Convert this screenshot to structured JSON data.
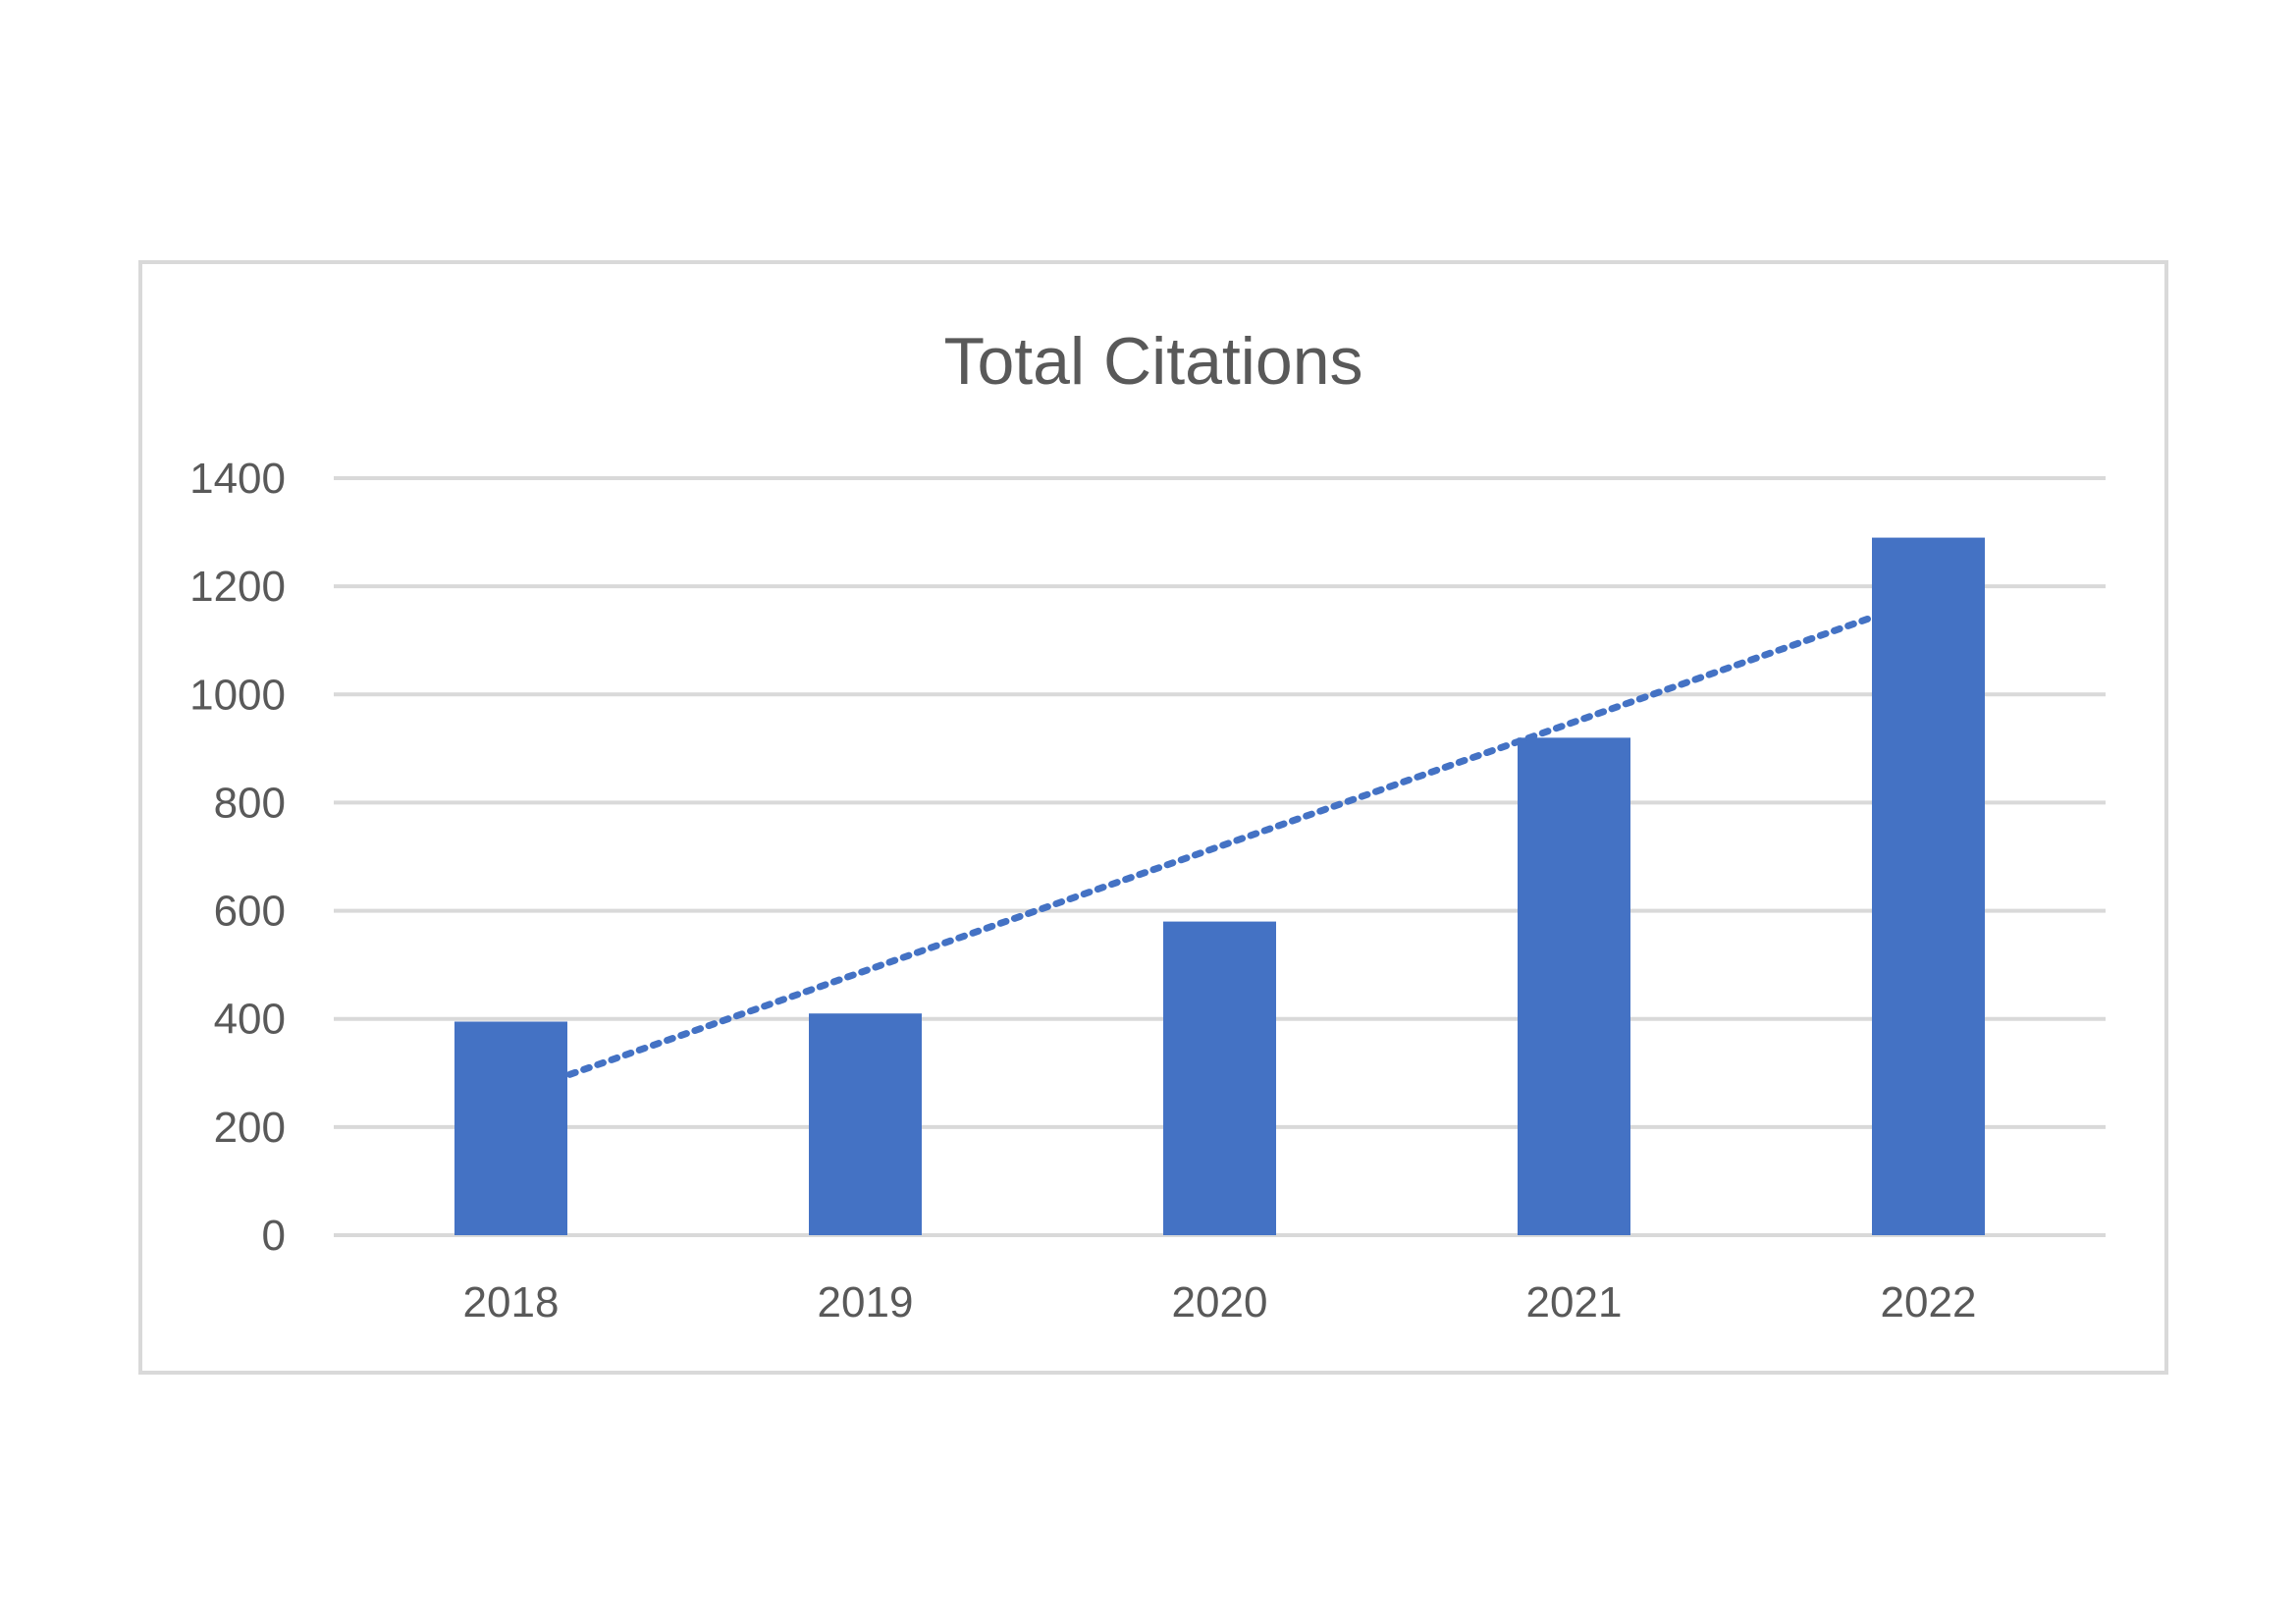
{
  "colors": {
    "bar": "#4472C4",
    "trendline": "#4472C4",
    "gridline": "#D9D9D9",
    "frame": "#D9D9D9",
    "text": "#595959"
  },
  "chart_data": {
    "type": "bar",
    "title": "Total Citations",
    "xlabel": "",
    "ylabel": "",
    "categories": [
      "2018",
      "2019",
      "2020",
      "2021",
      "2022"
    ],
    "series": [
      {
        "values": [
          395,
          410,
          580,
          920,
          1290
        ],
        "color": "#4472C4"
      }
    ],
    "trendline": {
      "type": "linear",
      "style": "dotted",
      "color": "#4472C4"
    },
    "ylim": [
      0,
      1400
    ],
    "yticks": [
      0,
      200,
      400,
      600,
      800,
      1000,
      1200,
      1400
    ],
    "grid": true,
    "legend": "none"
  }
}
